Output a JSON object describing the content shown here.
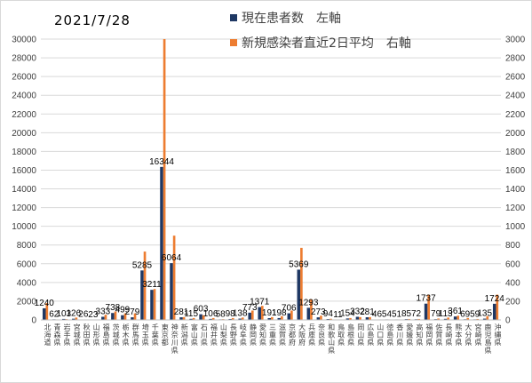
{
  "chart_data": {
    "type": "bar",
    "title": "2021/7/28",
    "legend_position": "top-right",
    "grid": true,
    "left_axis": {
      "min": 0,
      "max": 30000,
      "step": 2000
    },
    "right_axis": {
      "min": 0,
      "max": 3000,
      "step": 200
    },
    "categories": [
      "北海道",
      "青森県",
      "岩手県",
      "宮城県",
      "秋田県",
      "山形県",
      "福島県",
      "茨城県",
      "栃木県",
      "群馬県",
      "埼玉県",
      "千葉県",
      "東京都",
      "神奈川県",
      "新潟県",
      "富山県",
      "石川県",
      "福井県",
      "山梨県",
      "長野県",
      "岐阜県",
      "静岡県",
      "愛知県",
      "三重県",
      "滋賀県",
      "京都府",
      "大阪府",
      "兵庫県",
      "奈良県",
      "和歌山県",
      "鳥取県",
      "島根県",
      "岡山県",
      "広島県",
      "山口県",
      "徳島県",
      "香川県",
      "愛媛県",
      "高知県",
      "福岡県",
      "佐賀県",
      "長崎県",
      "熊本県",
      "大分県",
      "宮崎県",
      "鹿児島県",
      "沖縄県"
    ],
    "series": [
      {
        "name": "現在患者数　左軸",
        "axis": "left",
        "color": "#1f3864",
        "values": [
          1240,
          62,
          103,
          126,
          26,
          23,
          333,
          738,
          499,
          279,
          5285,
          3211,
          16344,
          6064,
          281,
          115,
          603,
          106,
          58,
          98,
          138,
          773,
          1371,
          191,
          198,
          706,
          5369,
          1293,
          273,
          94,
          11,
          154,
          332,
          281,
          46,
          54,
          51,
          85,
          72,
          1737,
          79,
          113,
          361,
          69,
          59,
          135,
          1724
        ],
        "labels": [
          "1240",
          "62",
          "103",
          "126",
          "26",
          "23",
          "333",
          "738",
          "499",
          "279",
          "5285",
          "3211",
          "16344",
          "6064",
          "281",
          "115",
          "603",
          "106",
          "58",
          "98",
          "138",
          "773",
          "1371",
          "191",
          "198",
          "706",
          "5369",
          "1293",
          "273",
          "94",
          "11",
          "154",
          "332",
          "281",
          "46",
          "54",
          "51",
          "85",
          "72",
          "1737",
          "79",
          "113",
          "361",
          "69",
          "59",
          "135",
          "1724"
        ]
      },
      {
        "name": "新規感染者直近2日平均　右軸",
        "axis": "right",
        "color": "#ed7d31",
        "values": [
          180,
          5,
          8,
          25,
          3,
          3,
          55,
          90,
          70,
          70,
          730,
          330,
          3000,
          900,
          30,
          20,
          50,
          20,
          8,
          20,
          25,
          100,
          150,
          30,
          40,
          100,
          770,
          220,
          45,
          12,
          2,
          20,
          30,
          30,
          5,
          5,
          5,
          10,
          10,
          270,
          15,
          25,
          45,
          20,
          10,
          40,
          270
        ]
      }
    ]
  }
}
